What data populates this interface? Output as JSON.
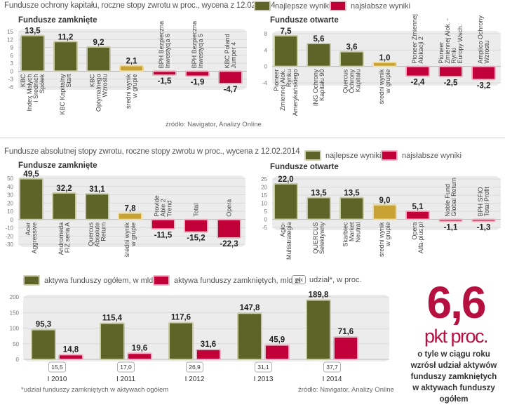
{
  "colors": {
    "best": "#5c6428",
    "worst": "#c1003a",
    "average": "#c9a236",
    "plot_bg": "#ececec",
    "grid": "#d4d4d4"
  },
  "section1": {
    "title": "Fundusze ochrony kapitału, roczne stopy zwrotu w proc., wycena z 12.02.2014",
    "legend_best": "najlepsze wyniki",
    "legend_worst": "najsłabsze wyniki",
    "source": "źródło: Navigator, Analizy Online"
  },
  "section2": {
    "title": "Fundusze absolutnej stopy zwrotu, roczne stopy zwrotu w proc., wycena z 12.02.2014",
    "legend_best": "najlepsze wyniki",
    "legend_worst": "najsłabsze wyniki"
  },
  "section3": {
    "legend_total": "aktywa funduszy ogółem, w mld zł",
    "legend_closed": "aktywa funduszy zamkniętych, mld zł",
    "legend_share_box": "xxx",
    "legend_share": "udział*, w proc.",
    "footnote": "*udział funduszy zamkniętych w aktywach ogółem",
    "source": "źródło: Navigator, Analizy Online"
  },
  "highlight": {
    "value": "6,6",
    "unit": "pkt proc.",
    "description": [
      "o tyle w ciągu roku",
      "wzrósł udział aktywów",
      "funduszy zamkniętych",
      "w aktywach funduszy ogółem"
    ]
  },
  "chart_data": [
    {
      "type": "bar",
      "title": "Fundusze zamknięte",
      "group": "Fundusze ochrony kapitału",
      "ylim": [
        -6,
        15
      ],
      "yticks": [
        15,
        12,
        9,
        6,
        3,
        0,
        -3,
        -6
      ],
      "grid": true,
      "categories": [
        [
          "KBC",
          "Index Małych",
          "i Średnich",
          "Spółek"
        ],
        [
          "KBC Kapitalny",
          "Start"
        ],
        [
          "KBC",
          "Optymalnego",
          "Wzrostu"
        ],
        [
          "średni wynik",
          "w grupie"
        ],
        [
          "BPH Bezpieczna",
          "Inwestycja 6"
        ],
        [
          "BPH Bezpieczna",
          "Inwestycja 5"
        ],
        [
          "KBC Poland",
          "Jumper 4"
        ]
      ],
      "values": [
        13.5,
        11.2,
        9.2,
        2.1,
        -1.5,
        -1.9,
        -4.7
      ],
      "labels": [
        "13,5",
        "11,2",
        "9,2",
        "2,1",
        "-1,5",
        "-1,9",
        "-4,7"
      ],
      "kinds": [
        "best",
        "best",
        "best",
        "average",
        "worst",
        "worst",
        "worst"
      ]
    },
    {
      "type": "bar",
      "title": "Fundusze otwarte",
      "group": "Fundusze ochrony kapitału",
      "ylim": [
        -4,
        8
      ],
      "yticks": [
        8,
        4,
        0,
        -4
      ],
      "grid": true,
      "categories": [
        [
          "Pioneer",
          "Zmiennej Alok.",
          "Rynku",
          "Amerykańskiego"
        ],
        [
          "ING Ochrony",
          "Kapitału 90"
        ],
        [
          "Quercus",
          "Ochrony",
          "Kapitału"
        ],
        [
          "średni wynik",
          "w grupie"
        ],
        [
          "Pioneer Zmiennej",
          "Alokacji 2"
        ],
        [
          "Pioneer",
          "Zmiennej Alok. -",
          "Rynki",
          "Europy Wsch."
        ],
        [
          "Amplico Ochrony",
          "Wzrostu"
        ]
      ],
      "values": [
        7.5,
        5.6,
        3.6,
        1.0,
        -2.4,
        -2.5,
        -3.2
      ],
      "labels": [
        "7,5",
        "5,6",
        "3,6",
        "1,0",
        "-2,4",
        "-2,5",
        "-3,2"
      ],
      "kinds": [
        "best",
        "best",
        "best",
        "average",
        "worst",
        "worst",
        "worst"
      ]
    },
    {
      "type": "bar",
      "title": "Fundusze zamknięte",
      "group": "Fundusze absolutnej stopy zwrotu",
      "ylim": [
        -30,
        50
      ],
      "yticks": [
        50,
        40,
        30,
        20,
        10,
        0,
        -10,
        -20,
        -30
      ],
      "grid": true,
      "categories": [
        [
          "Acer",
          "Aggressive"
        ],
        [
          "Andromeda",
          "FIZ seria A"
        ],
        [
          "Quercus",
          "Absolute",
          "Return"
        ],
        [
          "średni wynik",
          "w grupie"
        ],
        [
          "Provide",
          "Able 2",
          "Trend"
        ],
        [
          "Total"
        ],
        [
          "Opera"
        ]
      ],
      "values": [
        49.5,
        32.2,
        31.1,
        7.8,
        -11.5,
        -15.2,
        -22.3
      ],
      "labels": [
        "49,5",
        "32,2",
        "31,1",
        "7,8",
        "-11,5",
        "-15,2",
        "-22,3"
      ],
      "kinds": [
        "best",
        "best",
        "best",
        "average",
        "worst",
        "worst",
        "worst"
      ]
    },
    {
      "type": "bar",
      "title": "Fundusze otwarte",
      "group": "Fundusze absolutnej stopy zwrotu",
      "ylim": [
        -5,
        25
      ],
      "yticks": [
        25,
        20,
        15,
        10,
        5,
        0,
        -5
      ],
      "grid": true,
      "categories": [
        [
          "Agio-",
          "Multistrategia"
        ],
        [
          "QUERCUS",
          "Selektywny"
        ],
        [
          "Skarbiec",
          "Market",
          "Neutral"
        ],
        [
          "średni wynik",
          "w grupie"
        ],
        [
          "Opera",
          "Alfa-plus.pl"
        ],
        [
          "Noble Fund",
          "Global Return"
        ],
        [
          "BPH SFIO",
          "Total Profit"
        ]
      ],
      "values": [
        22.0,
        13.5,
        13.5,
        9.0,
        5.1,
        -1.1,
        -1.3
      ],
      "labels": [
        "22,0",
        "13,5",
        "13,5",
        "9,0",
        "5,1",
        "-1,1",
        "-1,3"
      ],
      "kinds": [
        "best",
        "best",
        "best",
        "average",
        "worst",
        "worst",
        "worst"
      ]
    },
    {
      "type": "bar",
      "title": "Aktywa funduszy",
      "ylim": [
        0,
        200
      ],
      "yticks": [
        200,
        150,
        100,
        50,
        0
      ],
      "grid": true,
      "categories": [
        "I 2010",
        "I 2011",
        "I 2012",
        "I 2013",
        "I 2014"
      ],
      "series": [
        {
          "name": "aktywa funduszy ogółem, w mld zł",
          "values": [
            95.3,
            115.4,
            117.6,
            147.8,
            189.8
          ],
          "labels": [
            "95,3",
            "115,4",
            "117,6",
            "147,8",
            "189,8"
          ]
        },
        {
          "name": "aktywa funduszy zamkniętych, mld zł",
          "values": [
            14.8,
            19.6,
            31.6,
            45.9,
            71.6
          ],
          "labels": [
            "14,8",
            "19,6",
            "31,6",
            "45,9",
            "71,6"
          ]
        }
      ],
      "share_pct": [
        "15,5",
        "17,0",
        "26,9",
        "31,1",
        "37,7"
      ]
    }
  ]
}
